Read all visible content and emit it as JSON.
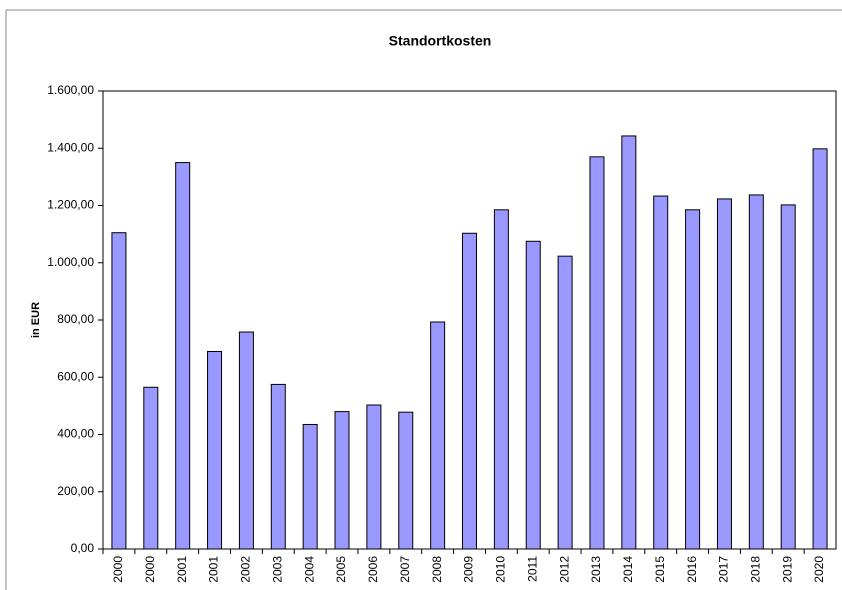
{
  "chart_data": {
    "type": "bar",
    "title": "Standortkosten",
    "y_label": "in EUR",
    "categories": [
      "2000",
      "2000",
      "2001",
      "2001",
      "2002",
      "2003",
      "2004",
      "2005",
      "2006",
      "2007",
      "2008",
      "2009",
      "2010",
      "2011",
      "2012",
      "2013",
      "2014",
      "2015",
      "2016",
      "2017",
      "2018",
      "2019",
      "2020"
    ],
    "values": [
      1105,
      565,
      1350,
      690,
      758,
      575,
      435,
      480,
      503,
      478,
      793,
      1103,
      1185,
      1075,
      1023,
      1370,
      1443,
      1233,
      1185,
      1223,
      1237,
      1202,
      1398
    ],
    "color": "#9999ff",
    "ylim": [
      0,
      1600
    ],
    "yticks": [
      {
        "value": 0,
        "label": "0,00"
      },
      {
        "value": 200,
        "label": "200,00"
      },
      {
        "value": 400,
        "label": "400,00"
      },
      {
        "value": 600,
        "label": "600,00"
      },
      {
        "value": 800,
        "label": "800,00"
      },
      {
        "value": 1000,
        "label": "1.000,00"
      },
      {
        "value": 1200,
        "label": "1.200,00"
      },
      {
        "value": 1400,
        "label": "1.400,00"
      },
      {
        "value": 1600,
        "label": "1.600,00"
      }
    ],
    "grid": false
  }
}
